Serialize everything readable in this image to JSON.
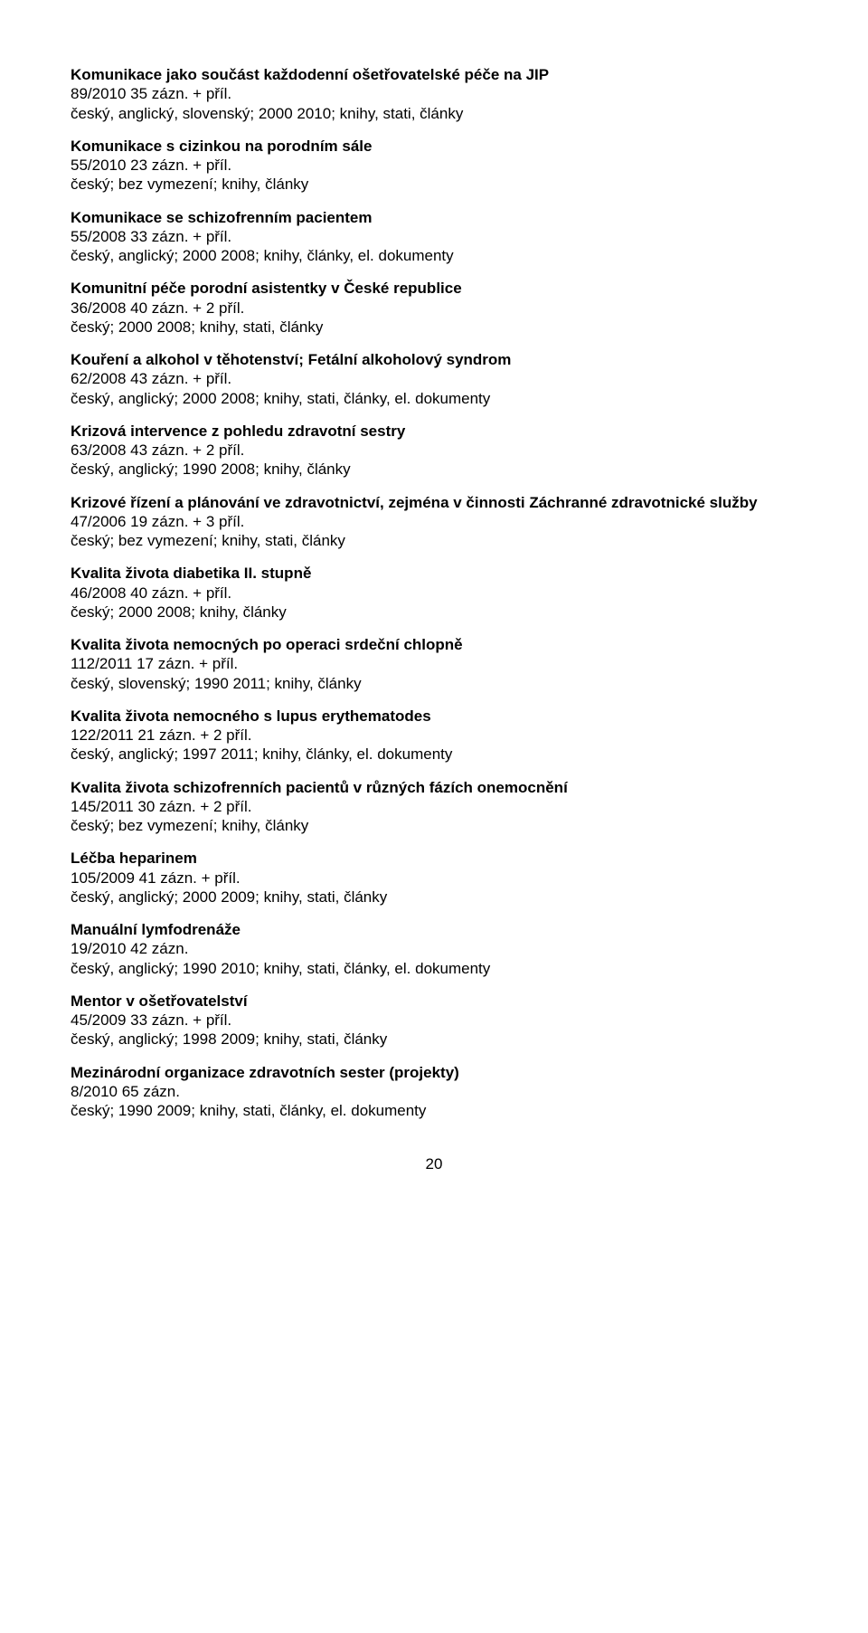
{
  "entries": [
    {
      "title": "Komunikace jako součást každodenní ošetřovatelské péče na JIP",
      "line1": "89/2010 35 zázn. + příl.",
      "line2": "český, anglický, slovenský; 2000 2010; knihy, stati, články"
    },
    {
      "title": "Komunikace s cizinkou na porodním sále",
      "line1": "55/2010 23 zázn. + příl.",
      "line2": "český; bez vymezení; knihy, články"
    },
    {
      "title": "Komunikace se schizofrenním pacientem",
      "line1": "55/2008 33 zázn. + příl.",
      "line2": "český, anglický; 2000 2008; knihy, články, el. dokumenty"
    },
    {
      "title": "Komunitní péče porodní asistentky v České republice",
      "line1": "36/2008 40 zázn. + 2 příl.",
      "line2": "český; 2000 2008; knihy, stati, články"
    },
    {
      "title": "Kouření a alkohol v těhotenství; Fetální alkoholový syndrom",
      "line1": "62/2008 43 zázn. + příl.",
      "line2": "český, anglický; 2000 2008; knihy, stati, články, el. dokumenty"
    },
    {
      "title": "Krizová intervence z pohledu zdravotní sestry",
      "line1": "63/2008 43 zázn. + 2 příl.",
      "line2": "český, anglický; 1990 2008; knihy, články"
    },
    {
      "title": "Krizové řízení a plánování ve zdravotnictví, zejména v činnosti Záchranné zdravotnické služby",
      "line1": "47/2006 19 zázn. + 3 příl.",
      "line2": "český; bez vymezení; knihy, stati, články"
    },
    {
      "title": "Kvalita života diabetika II. stupně",
      "line1": "46/2008 40 zázn. + příl.",
      "line2": "český; 2000 2008; knihy, články"
    },
    {
      "title": "Kvalita života nemocných po operaci srdeční chlopně",
      "line1": "112/2011 17 zázn. + příl.",
      "line2": "český, slovenský; 1990 2011; knihy, články"
    },
    {
      "title": "Kvalita života nemocného s lupus erythematodes",
      "line1": "122/2011 21 zázn. + 2 příl.",
      "line2": "český, anglický; 1997 2011; knihy, články, el. dokumenty"
    },
    {
      "title": "Kvalita života schizofrenních pacientů v různých fázích onemocnění",
      "line1": "145/2011 30 zázn. + 2 příl.",
      "line2": "český; bez vymezení; knihy, články"
    },
    {
      "title": "Léčba heparinem",
      "line1": "105/2009 41 zázn. + příl.",
      "line2": "český, anglický; 2000 2009; knihy, stati, články"
    },
    {
      "title": "Manuální lymfodrenáže",
      "line1": "19/2010 42 zázn.",
      "line2": "český, anglický; 1990 2010; knihy, stati, články, el. dokumenty"
    },
    {
      "title": "Mentor v ošetřovatelství",
      "line1": "45/2009 33 zázn. + příl.",
      "line2": "český, anglický; 1998 2009; knihy, stati, články"
    },
    {
      "title": "Mezinárodní organizace zdravotních sester (projekty)",
      "line1": "8/2010 65 zázn.",
      "line2": "český; 1990 2009; knihy, stati, články, el. dokumenty"
    }
  ],
  "page_number": "20"
}
